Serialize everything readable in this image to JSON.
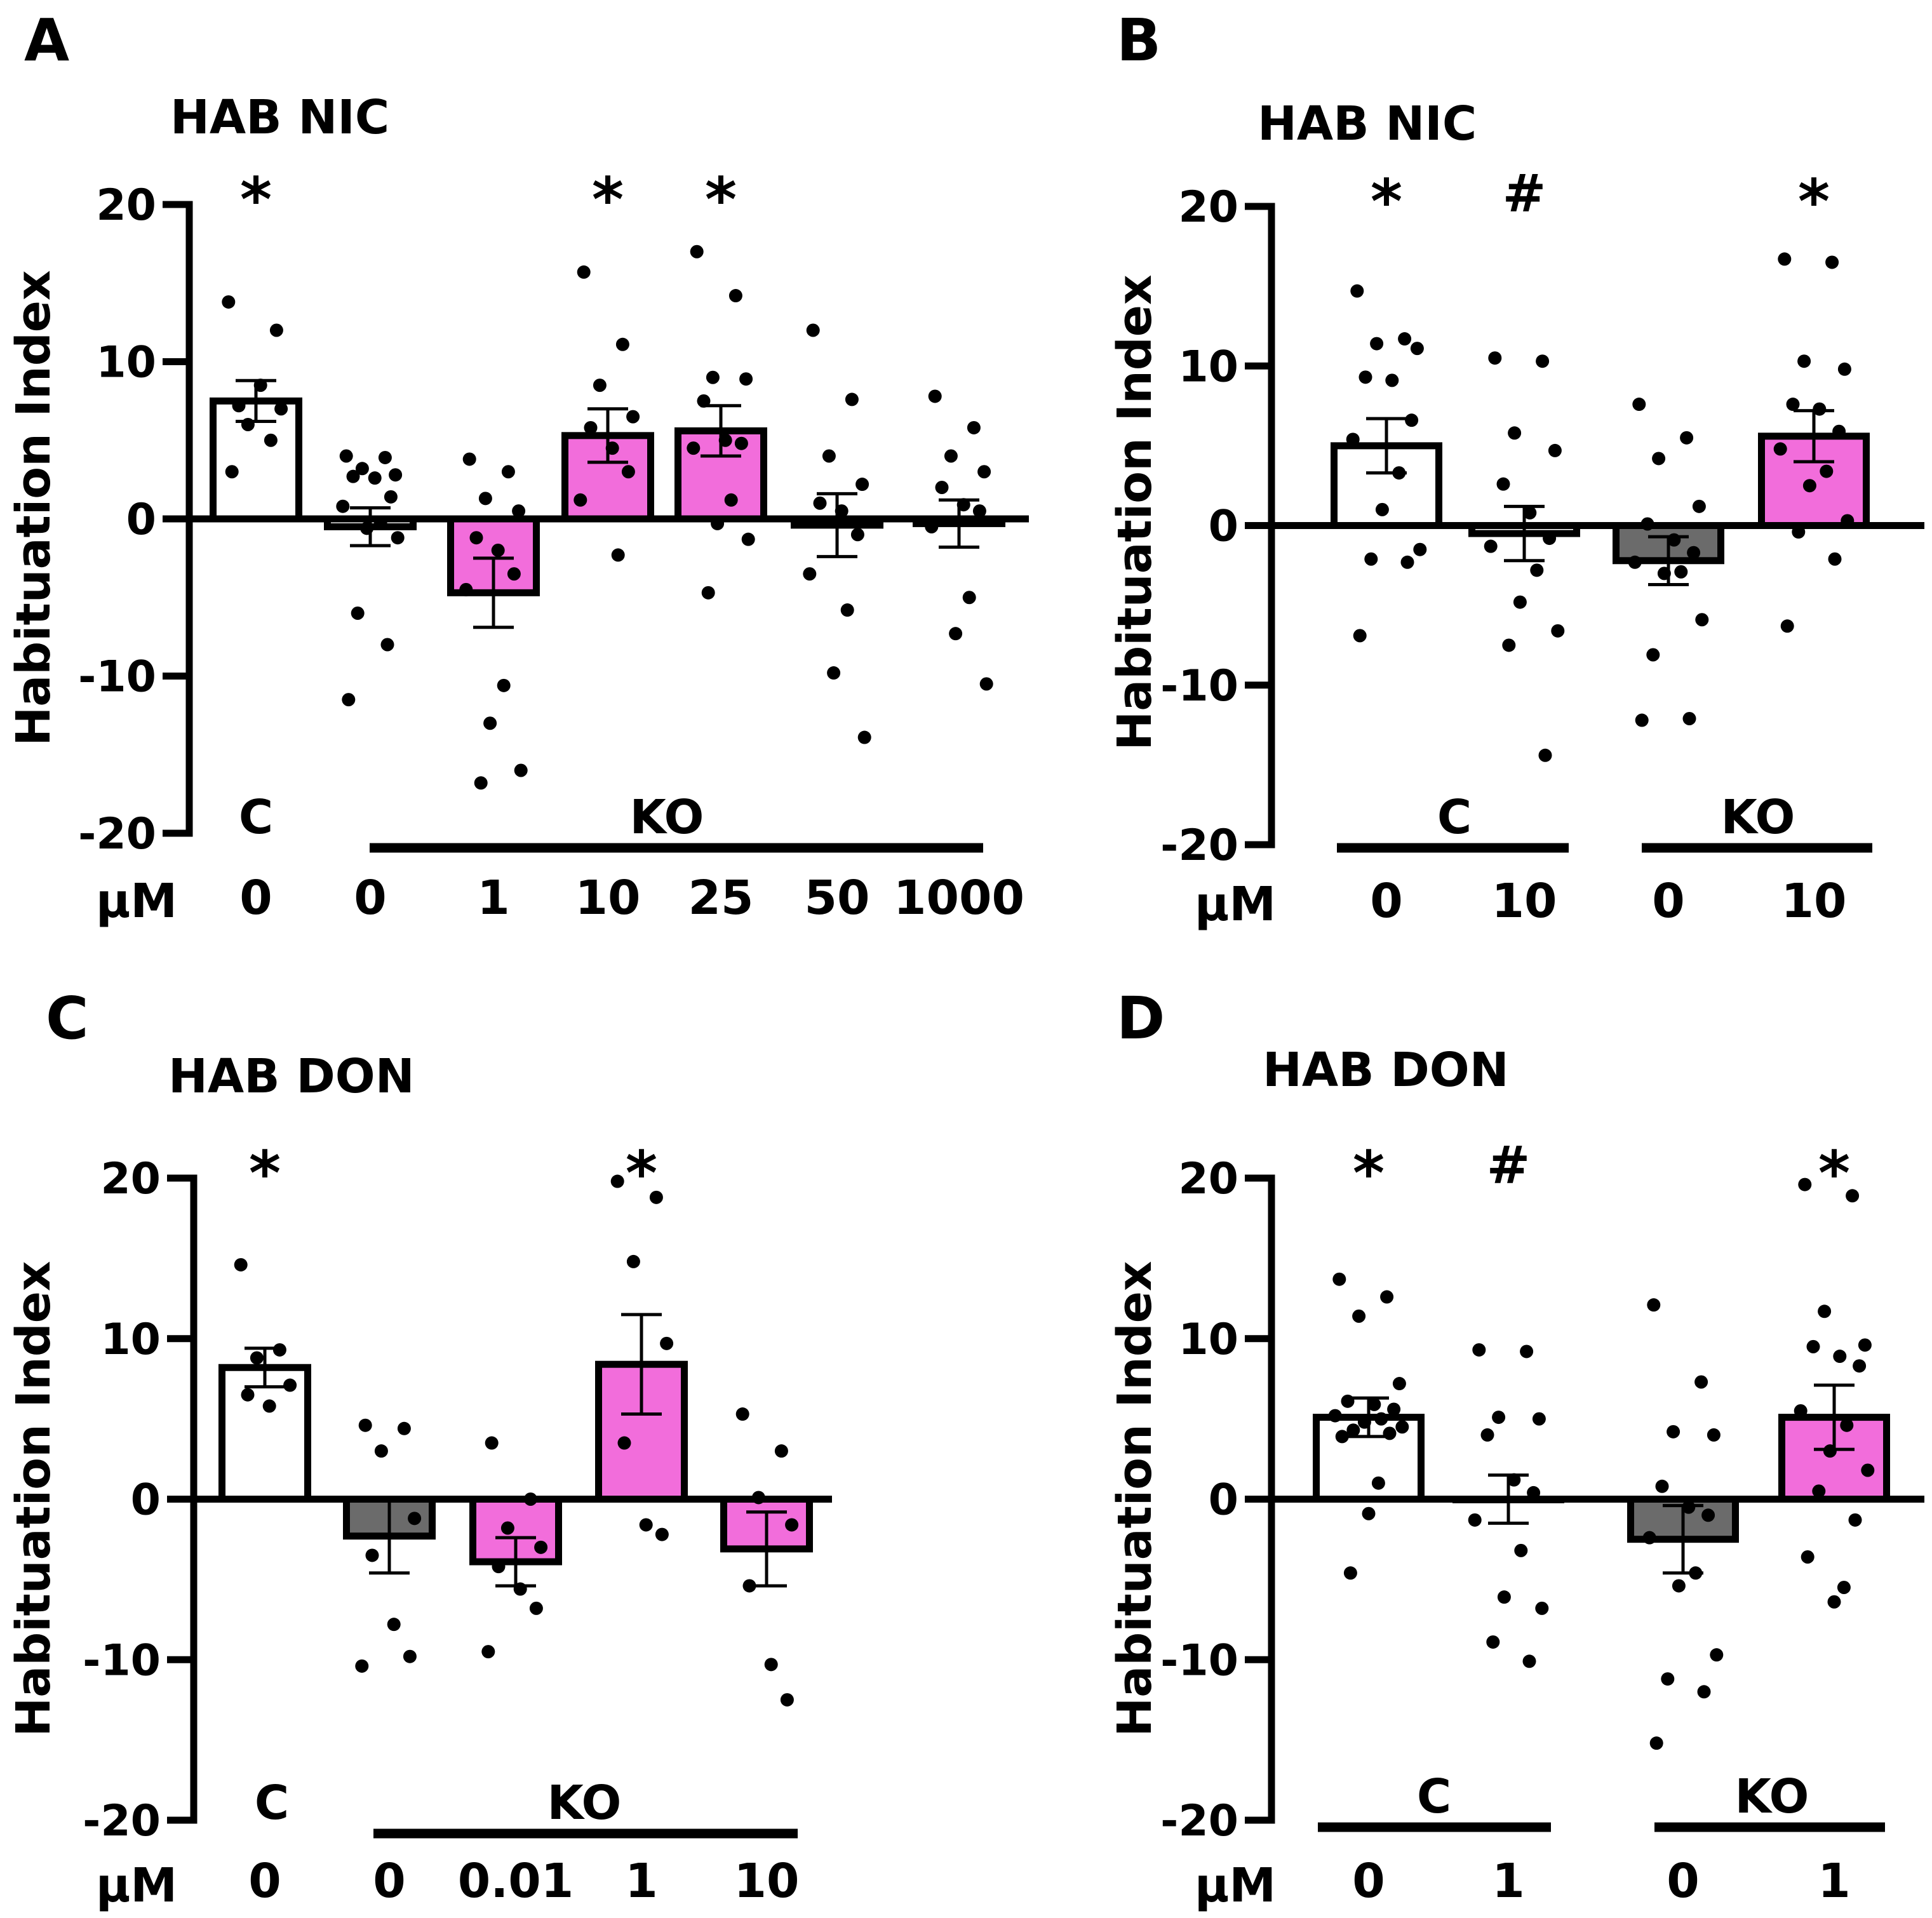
{
  "colors": {
    "control": "#ffffff",
    "ko_vehicle": "#6b6b6b",
    "ko_drug": "#f26ddb",
    "ink": "#000000"
  },
  "axis_label": "µM",
  "chart_data": [
    {
      "panel": "A",
      "title": "HAB NIC",
      "type": "bar",
      "ylabel": "Habituation Index",
      "ylim": [
        -20,
        20
      ],
      "yticks": [
        20,
        10,
        0,
        -10,
        -20
      ],
      "groups": [
        {
          "label": "C",
          "bars": [
            0
          ]
        },
        {
          "label": "KO",
          "bars": [
            1,
            2,
            3,
            4,
            5,
            6
          ]
        }
      ],
      "bars": [
        {
          "dose": "0",
          "mean": 7.5,
          "sem": 1.3,
          "color": "control",
          "sig": "*",
          "points": [
            3.0,
            5.0,
            6.0,
            7.0,
            7.2,
            8.5,
            12.0,
            13.8
          ]
        },
        {
          "dose": "0",
          "mean": -0.5,
          "sem": 1.2,
          "color": "control",
          "sig": "",
          "points": [
            4.0,
            3.9,
            3.2,
            2.8,
            2.7,
            2.6,
            1.4,
            0.8,
            -0.2,
            -0.6,
            -1.2,
            -6.0,
            -8.0,
            -11.5
          ]
        },
        {
          "dose": "1",
          "mean": -4.7,
          "sem": 2.2,
          "color": "ko_drug",
          "sig": "",
          "points": [
            3.8,
            3.0,
            1.3,
            0.5,
            -1.2,
            -2.0,
            -3.5,
            -4.5,
            -10.6,
            -13.0,
            -16.0,
            -16.8
          ]
        },
        {
          "dose": "10",
          "mean": 5.3,
          "sem": 1.7,
          "color": "ko_drug",
          "sig": "*",
          "points": [
            15.7,
            11.1,
            8.5,
            6.5,
            5.8,
            4.5,
            3.0,
            1.2,
            -2.3
          ]
        },
        {
          "dose": "25",
          "mean": 5.6,
          "sem": 1.6,
          "color": "ko_drug",
          "sig": "*",
          "points": [
            17.0,
            14.2,
            9.0,
            8.9,
            7.5,
            5.0,
            4.8,
            4.5,
            1.2,
            -0.3,
            -1.3,
            -4.7
          ]
        },
        {
          "dose": "50",
          "mean": -0.4,
          "sem": 2.0,
          "color": "control",
          "sig": "",
          "points": [
            12.0,
            7.6,
            4.0,
            2.2,
            1.0,
            0.5,
            -1.0,
            -3.5,
            -5.8,
            -9.8,
            -13.9
          ]
        },
        {
          "dose": "1000",
          "mean": -0.3,
          "sem": 1.5,
          "color": "control",
          "sig": "",
          "points": [
            7.8,
            5.8,
            4.0,
            3.0,
            2.0,
            0.9,
            0.5,
            -0.5,
            -5.0,
            -7.3,
            -10.5
          ]
        }
      ]
    },
    {
      "panel": "B",
      "title": "HAB NIC",
      "type": "bar",
      "ylabel": "Habituation Index",
      "ylim": [
        -20,
        20
      ],
      "yticks": [
        20,
        10,
        0,
        -10,
        -20
      ],
      "groups": [
        {
          "label": "C",
          "bars": [
            0,
            1
          ]
        },
        {
          "label": "KO",
          "bars": [
            2,
            3
          ]
        }
      ],
      "bars": [
        {
          "dose": "0",
          "mean": 5.0,
          "sem": 1.7,
          "color": "control",
          "sig": "*",
          "points": [
            14.7,
            11.7,
            11.4,
            11.1,
            9.3,
            9.1,
            6.6,
            5.4,
            3.3,
            1.0,
            -1.5,
            -2.1,
            -2.3,
            -6.9
          ]
        },
        {
          "dose": "10",
          "mean": -0.5,
          "sem": 1.7,
          "color": "control",
          "sig": "#",
          "points": [
            10.5,
            10.3,
            5.8,
            4.7,
            2.6,
            0.8,
            -0.8,
            -1.3,
            -2.8,
            -4.8,
            -6.6,
            -7.5,
            -14.4
          ]
        },
        {
          "dose": "0",
          "mean": -2.2,
          "sem": 1.5,
          "color": "ko_vehicle",
          "sig": "",
          "points": [
            7.6,
            5.5,
            4.2,
            1.2,
            0.1,
            -0.9,
            -1.7,
            -2.3,
            -2.9,
            -3.0,
            -5.9,
            -8.1,
            -12.1,
            -12.2
          ]
        },
        {
          "dose": "10",
          "mean": 5.6,
          "sem": 1.6,
          "color": "ko_drug",
          "sig": "*",
          "points": [
            16.7,
            16.5,
            10.3,
            9.8,
            7.6,
            7.3,
            5.9,
            4.8,
            3.4,
            2.5,
            0.3,
            -0.4,
            -2.1,
            -6.3
          ]
        }
      ]
    },
    {
      "panel": "C",
      "title": "HAB DON",
      "type": "bar",
      "ylabel": "Habituation Index",
      "ylim": [
        -20,
        20
      ],
      "yticks": [
        20,
        10,
        0,
        -10,
        -20
      ],
      "groups": [
        {
          "label": "C",
          "bars": [
            0
          ]
        },
        {
          "label": "KO",
          "bars": [
            1,
            2,
            3,
            4
          ]
        }
      ],
      "bars": [
        {
          "dose": "0",
          "mean": 8.2,
          "sem": 1.2,
          "color": "control",
          "sig": "*",
          "points": [
            14.6,
            9.3,
            8.8,
            7.1,
            6.5,
            5.8
          ]
        },
        {
          "dose": "0",
          "mean": -2.3,
          "sem": 2.3,
          "color": "ko_vehicle",
          "sig": "",
          "points": [
            4.6,
            4.4,
            3.0,
            -1.2,
            -3.5,
            -7.8,
            -9.8,
            -10.4
          ]
        },
        {
          "dose": "0.01",
          "mean": -3.9,
          "sem": 1.5,
          "color": "ko_drug",
          "sig": "",
          "points": [
            3.5,
            0.0,
            -1.8,
            -3.0,
            -4.2,
            -5.6,
            -6.8,
            -9.5
          ]
        },
        {
          "dose": "1",
          "mean": 8.4,
          "sem": 3.1,
          "color": "ko_drug",
          "sig": "*",
          "points": [
            19.8,
            18.8,
            14.8,
            9.7,
            3.5,
            -1.6,
            -2.2
          ]
        },
        {
          "dose": "10",
          "mean": -3.1,
          "sem": 2.3,
          "color": "ko_drug",
          "sig": "",
          "points": [
            5.3,
            3.0,
            0.1,
            -1.6,
            -5.4,
            -10.3,
            -12.5
          ]
        }
      ]
    },
    {
      "panel": "D",
      "title": "HAB DON",
      "type": "bar",
      "ylabel": "Habituation Index",
      "ylim": [
        -20,
        20
      ],
      "yticks": [
        20,
        10,
        0,
        -10,
        -20
      ],
      "groups": [
        {
          "label": "C",
          "bars": [
            0,
            1
          ]
        },
        {
          "label": "KO",
          "bars": [
            2,
            3
          ]
        }
      ],
      "bars": [
        {
          "dose": "0",
          "mean": 5.1,
          "sem": 1.2,
          "color": "control",
          "sig": "*",
          "points": [
            13.7,
            12.6,
            11.4,
            7.2,
            6.1,
            5.9,
            5.6,
            5.2,
            5.0,
            4.8,
            4.5,
            4.3,
            4.1,
            3.9,
            1.0,
            -0.9,
            -4.6
          ]
        },
        {
          "dose": "1",
          "mean": 0.0,
          "sem": 1.5,
          "color": "control",
          "sig": "#",
          "points": [
            9.3,
            9.2,
            5.1,
            5.0,
            4.0,
            1.2,
            0.4,
            -1.3,
            -3.2,
            -6.1,
            -6.8,
            -8.9,
            -10.1
          ]
        },
        {
          "dose": "0",
          "mean": -2.5,
          "sem": 2.1,
          "color": "ko_vehicle",
          "sig": "",
          "points": [
            12.1,
            7.3,
            4.2,
            4.0,
            0.8,
            -0.5,
            -1.0,
            -2.4,
            -4.6,
            -5.4,
            -9.7,
            -11.2,
            -12.0,
            -15.2
          ]
        },
        {
          "dose": "1",
          "mean": 5.1,
          "sem": 2.0,
          "color": "ko_drug",
          "sig": "*",
          "points": [
            19.6,
            18.9,
            11.7,
            9.6,
            9.5,
            8.9,
            8.3,
            5.5,
            4.6,
            3.0,
            1.8,
            0.5,
            -1.3,
            -3.6,
            -5.5,
            -6.4
          ]
        }
      ]
    }
  ]
}
